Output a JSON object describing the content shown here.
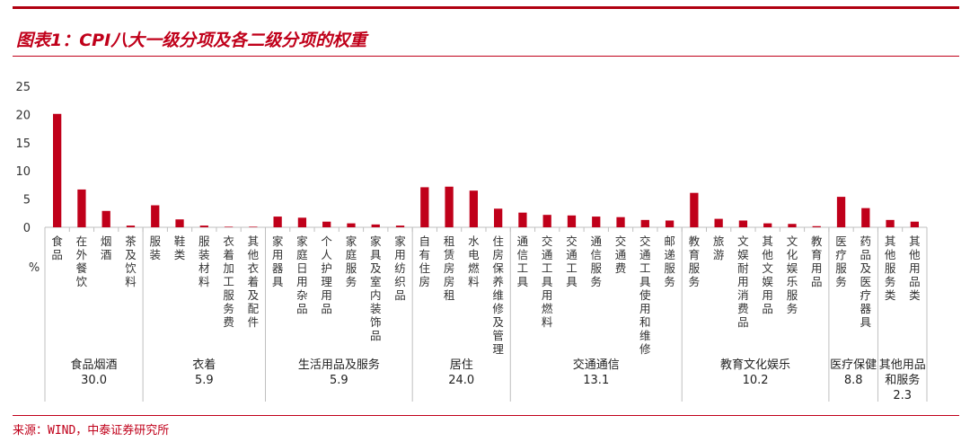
{
  "title": "图表1：CPI八大一级分项及各二级分项的权重",
  "source": "来源：WIND，中泰证券研究所",
  "colors": {
    "bar": "#c0001a",
    "accent": "#c0001a",
    "axis": "#bfbfbf"
  },
  "chart_data": {
    "type": "bar",
    "ylabel": "%",
    "ylim": [
      0,
      25
    ],
    "yticks": [
      0,
      5,
      10,
      15,
      20,
      25
    ],
    "grid": false,
    "categories": [
      "食品",
      "在外餐饮",
      "烟酒",
      "茶及饮料",
      "服装",
      "鞋类",
      "服装材料",
      "衣着加工服务费",
      "其他衣着及配件",
      "家用器具",
      "家庭日用杂品",
      "个人护理用品",
      "家庭服务",
      "家具及室内装饰品",
      "家用纺织品",
      "自有住房",
      "租赁房房租",
      "水电燃料",
      "住房保养维修及管理",
      "通信工具",
      "交通工具用燃料",
      "交通工具",
      "通信服务",
      "交通费",
      "交通工具使用和维修",
      "邮递服务",
      "教育服务",
      "旅游",
      "文娱耐用消费品",
      "其他文娱用品",
      "文化娱乐服务",
      "教育用品",
      "医疗服务",
      "药品及医疗器具",
      "其他服务类",
      "其他用品类"
    ],
    "values": [
      20.1,
      6.7,
      2.9,
      0.3,
      3.9,
      1.4,
      0.3,
      0.1,
      0.1,
      1.9,
      1.7,
      1.0,
      0.7,
      0.5,
      0.3,
      7.1,
      7.2,
      6.5,
      3.3,
      2.6,
      2.2,
      2.1,
      1.9,
      1.8,
      1.3,
      1.2,
      6.1,
      1.5,
      1.2,
      0.7,
      0.6,
      0.2,
      5.4,
      3.4,
      1.3,
      1.0
    ],
    "groups": [
      {
        "name": "食品烟酒",
        "weight": "30.0",
        "start": 0,
        "count": 4
      },
      {
        "name": "衣着",
        "weight": "5.9",
        "start": 4,
        "count": 5
      },
      {
        "name": "生活用品及服务",
        "weight": "5.9",
        "start": 9,
        "count": 6
      },
      {
        "name": "居住",
        "weight": "24.0",
        "start": 15,
        "count": 4
      },
      {
        "name": "交通通信",
        "weight": "13.1",
        "start": 19,
        "count": 7
      },
      {
        "name": "教育文化娱乐",
        "weight": "10.2",
        "start": 26,
        "count": 6
      },
      {
        "name": "医疗保健",
        "weight": "8.8",
        "start": 32,
        "count": 2
      },
      {
        "name": "其他用品和服务",
        "name_lines": [
          "其他用品",
          "和服务"
        ],
        "weight": "2.3",
        "start": 34,
        "count": 2
      }
    ]
  }
}
